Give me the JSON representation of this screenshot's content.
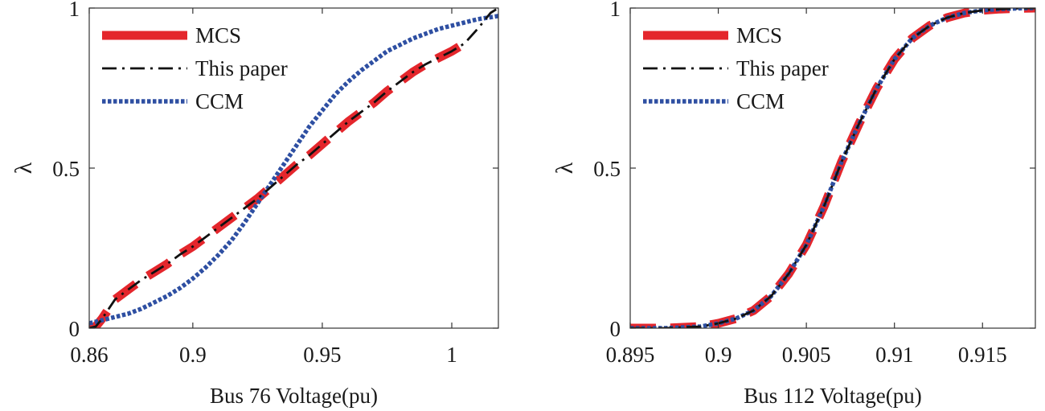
{
  "chart_data": [
    {
      "type": "line",
      "xlabel": "Bus 76 Voltage(pu)",
      "ylabel": "λ",
      "xlim": [
        0.86,
        1.018
      ],
      "ylim": [
        0,
        1
      ],
      "xticks": [
        0.86,
        0.9,
        0.95,
        1
      ],
      "xtick_labels": [
        "0.86",
        "0.9",
        "0.95",
        "1"
      ],
      "yticks": [
        0,
        0.5,
        1
      ],
      "ytick_labels": [
        "0",
        "0.5",
        "1"
      ],
      "legend_position": "top-left",
      "series": [
        {
          "name": "MCS",
          "color": "#e4262c",
          "style": "dashed-thick",
          "x": [
            0.86,
            0.8625,
            0.865,
            0.87,
            0.875,
            0.88,
            0.885,
            0.89,
            0.895,
            0.9,
            0.905,
            0.91,
            0.915,
            0.92,
            0.925,
            0.93,
            0.935,
            0.94,
            0.945,
            0.95,
            0.955,
            0.96,
            0.965,
            0.97,
            0.975,
            0.98,
            0.985,
            0.99,
            0.995,
            1.0,
            1.003,
            1.005
          ],
          "y": [
            0.0,
            0.005,
            0.03,
            0.09,
            0.12,
            0.15,
            0.175,
            0.2,
            0.23,
            0.255,
            0.285,
            0.315,
            0.345,
            0.375,
            0.405,
            0.44,
            0.475,
            0.51,
            0.54,
            0.575,
            0.61,
            0.645,
            0.675,
            0.705,
            0.74,
            0.77,
            0.8,
            0.825,
            0.845,
            0.865,
            0.88,
            0.89
          ]
        },
        {
          "name": "This paper",
          "color": "#111111",
          "style": "dash-dot",
          "x": [
            0.86,
            0.8625,
            0.865,
            0.87,
            0.875,
            0.88,
            0.885,
            0.89,
            0.895,
            0.9,
            0.905,
            0.91,
            0.915,
            0.92,
            0.925,
            0.93,
            0.935,
            0.94,
            0.945,
            0.95,
            0.955,
            0.96,
            0.965,
            0.97,
            0.975,
            0.98,
            0.985,
            0.99,
            0.995,
            1.0,
            1.005,
            1.01,
            1.015,
            1.018
          ],
          "y": [
            0.0,
            0.005,
            0.03,
            0.09,
            0.12,
            0.15,
            0.175,
            0.2,
            0.23,
            0.255,
            0.285,
            0.315,
            0.345,
            0.375,
            0.405,
            0.44,
            0.475,
            0.51,
            0.54,
            0.575,
            0.61,
            0.645,
            0.675,
            0.705,
            0.74,
            0.77,
            0.8,
            0.825,
            0.845,
            0.865,
            0.89,
            0.935,
            0.985,
            1.0
          ]
        },
        {
          "name": "CCM",
          "color": "#2e4fa2",
          "style": "dotted",
          "x": [
            0.86,
            0.865,
            0.87,
            0.875,
            0.88,
            0.885,
            0.89,
            0.895,
            0.9,
            0.905,
            0.91,
            0.915,
            0.92,
            0.925,
            0.93,
            0.935,
            0.94,
            0.945,
            0.95,
            0.955,
            0.96,
            0.965,
            0.97,
            0.975,
            0.98,
            0.985,
            0.99,
            0.995,
            1.0,
            1.005,
            1.01,
            1.018
          ],
          "y": [
            0.015,
            0.025,
            0.035,
            0.045,
            0.06,
            0.08,
            0.1,
            0.125,
            0.155,
            0.19,
            0.23,
            0.275,
            0.33,
            0.39,
            0.45,
            0.51,
            0.57,
            0.63,
            0.68,
            0.73,
            0.77,
            0.805,
            0.835,
            0.865,
            0.885,
            0.905,
            0.92,
            0.935,
            0.945,
            0.955,
            0.965,
            0.975
          ]
        }
      ]
    },
    {
      "type": "line",
      "xlabel": "Bus 112 Voltage(pu)",
      "ylabel": "λ",
      "xlim": [
        0.895,
        0.918
      ],
      "ylim": [
        0,
        1
      ],
      "xticks": [
        0.895,
        0.9,
        0.905,
        0.91,
        0.915
      ],
      "xtick_labels": [
        "0.895",
        "0.9",
        "0.905",
        "0.91",
        "0.915"
      ],
      "yticks": [
        0,
        0.5,
        1
      ],
      "ytick_labels": [
        "0",
        "0.5",
        "1"
      ],
      "legend_position": "top-left",
      "series": [
        {
          "name": "MCS",
          "color": "#e4262c",
          "style": "dashed-thick",
          "x": [
            0.895,
            0.897,
            0.899,
            0.9,
            0.901,
            0.902,
            0.903,
            0.904,
            0.905,
            0.906,
            0.907,
            0.908,
            0.909,
            0.91,
            0.911,
            0.912,
            0.913,
            0.914,
            0.915,
            0.916,
            0.917,
            0.918
          ],
          "y": [
            0.0,
            0.0,
            0.005,
            0.015,
            0.03,
            0.055,
            0.1,
            0.17,
            0.26,
            0.38,
            0.52,
            0.64,
            0.75,
            0.84,
            0.905,
            0.945,
            0.97,
            0.985,
            0.993,
            0.997,
            0.999,
            1.0
          ]
        },
        {
          "name": "This paper",
          "color": "#111111",
          "style": "dash-dot",
          "x": [
            0.895,
            0.897,
            0.899,
            0.9,
            0.901,
            0.902,
            0.903,
            0.904,
            0.905,
            0.906,
            0.907,
            0.908,
            0.909,
            0.91,
            0.911,
            0.912,
            0.913,
            0.914,
            0.915,
            0.916,
            0.917,
            0.918
          ],
          "y": [
            0.0,
            0.0,
            0.005,
            0.015,
            0.03,
            0.055,
            0.1,
            0.17,
            0.26,
            0.38,
            0.52,
            0.64,
            0.75,
            0.84,
            0.905,
            0.945,
            0.97,
            0.985,
            0.993,
            0.997,
            0.999,
            1.0
          ]
        },
        {
          "name": "CCM",
          "color": "#2e4fa2",
          "style": "dotted",
          "x": [
            0.895,
            0.897,
            0.899,
            0.9,
            0.901,
            0.902,
            0.903,
            0.904,
            0.905,
            0.906,
            0.907,
            0.908,
            0.909,
            0.91,
            0.911,
            0.912,
            0.913,
            0.914,
            0.915,
            0.916,
            0.917,
            0.918
          ],
          "y": [
            0.0,
            0.0,
            0.005,
            0.015,
            0.03,
            0.055,
            0.1,
            0.17,
            0.26,
            0.38,
            0.52,
            0.64,
            0.75,
            0.84,
            0.905,
            0.945,
            0.97,
            0.985,
            0.993,
            0.997,
            0.999,
            1.0
          ]
        }
      ]
    }
  ]
}
